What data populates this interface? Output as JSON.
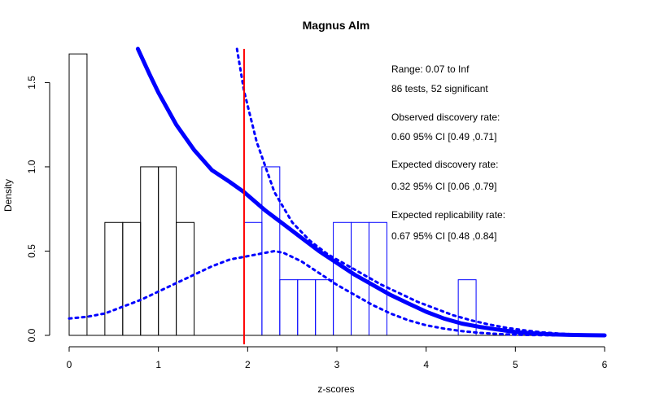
{
  "chart_data": {
    "type": "bar",
    "title": "Magnus Alm",
    "xlabel": "z-scores",
    "ylabel": "Density",
    "xlim": [
      0,
      6
    ],
    "ylim": [
      0,
      1.7
    ],
    "x_ticks": [
      "0",
      "1",
      "2",
      "3",
      "4",
      "5",
      "6"
    ],
    "y_ticks": [
      "0.0",
      "0.5",
      "1.0",
      "1.5"
    ],
    "histogram": {
      "bin_width": 0.2,
      "bins": [
        {
          "start": 0.0,
          "density": 1.67,
          "significant": false
        },
        {
          "start": 0.2,
          "density": 0.0,
          "significant": false
        },
        {
          "start": 0.4,
          "density": 0.67,
          "significant": false
        },
        {
          "start": 0.6,
          "density": 0.67,
          "significant": false
        },
        {
          "start": 0.8,
          "density": 1.0,
          "significant": false
        },
        {
          "start": 1.0,
          "density": 1.0,
          "significant": false
        },
        {
          "start": 1.2,
          "density": 0.67,
          "significant": false
        },
        {
          "start": 1.4,
          "density": 0.0,
          "significant": false
        },
        {
          "start": 1.6,
          "density": 0.0,
          "significant": false
        },
        {
          "start": 1.8,
          "density": 0.0,
          "significant": false
        },
        {
          "start": 1.96,
          "density": 0.67,
          "significant": true
        },
        {
          "start": 2.16,
          "density": 1.0,
          "significant": true
        },
        {
          "start": 2.36,
          "density": 0.33,
          "significant": true
        },
        {
          "start": 2.56,
          "density": 0.33,
          "significant": true
        },
        {
          "start": 2.76,
          "density": 0.33,
          "significant": true
        },
        {
          "start": 2.96,
          "density": 0.67,
          "significant": true
        },
        {
          "start": 3.16,
          "density": 0.67,
          "significant": true
        },
        {
          "start": 3.36,
          "density": 0.67,
          "significant": true
        },
        {
          "start": 3.56,
          "density": 0.0,
          "significant": true
        },
        {
          "start": 3.76,
          "density": 0.0,
          "significant": true
        },
        {
          "start": 3.96,
          "density": 0.0,
          "significant": true
        },
        {
          "start": 4.16,
          "density": 0.0,
          "significant": true
        },
        {
          "start": 4.36,
          "density": 0.33,
          "significant": true
        }
      ]
    },
    "significance_line": {
      "x": 1.96,
      "color": "#ff0000"
    },
    "series": [
      {
        "style": "solid",
        "color": "#0000ff",
        "points": [
          [
            0.77,
            1.7
          ],
          [
            0.9,
            1.55
          ],
          [
            1.0,
            1.44
          ],
          [
            1.2,
            1.25
          ],
          [
            1.4,
            1.1
          ],
          [
            1.6,
            0.98
          ],
          [
            1.8,
            0.91
          ],
          [
            1.96,
            0.85
          ],
          [
            2.2,
            0.74
          ],
          [
            2.4,
            0.66
          ],
          [
            2.6,
            0.58
          ],
          [
            2.8,
            0.5
          ],
          [
            3.0,
            0.43
          ],
          [
            3.2,
            0.36
          ],
          [
            3.4,
            0.3
          ],
          [
            3.6,
            0.24
          ],
          [
            3.8,
            0.19
          ],
          [
            4.0,
            0.14
          ],
          [
            4.2,
            0.1
          ],
          [
            4.4,
            0.07
          ],
          [
            4.6,
            0.05
          ],
          [
            4.8,
            0.035
          ],
          [
            5.0,
            0.02
          ],
          [
            5.2,
            0.012
          ],
          [
            5.4,
            0.006
          ],
          [
            5.6,
            0.003
          ],
          [
            5.8,
            0.001
          ],
          [
            6.0,
            0.0
          ]
        ]
      },
      {
        "style": "dotted",
        "color": "#0000ff",
        "points": [
          [
            0.0,
            0.1
          ],
          [
            0.2,
            0.11
          ],
          [
            0.4,
            0.13
          ],
          [
            0.6,
            0.17
          ],
          [
            0.8,
            0.21
          ],
          [
            1.0,
            0.26
          ],
          [
            1.2,
            0.31
          ],
          [
            1.4,
            0.36
          ],
          [
            1.6,
            0.41
          ],
          [
            1.8,
            0.45
          ],
          [
            2.0,
            0.47
          ],
          [
            2.2,
            0.49
          ],
          [
            2.3,
            0.5
          ],
          [
            2.4,
            0.49
          ],
          [
            2.6,
            0.44
          ],
          [
            2.8,
            0.37
          ],
          [
            3.0,
            0.3
          ],
          [
            3.2,
            0.24
          ],
          [
            3.4,
            0.18
          ],
          [
            3.6,
            0.13
          ],
          [
            3.8,
            0.09
          ],
          [
            4.0,
            0.06
          ],
          [
            4.2,
            0.04
          ],
          [
            4.4,
            0.025
          ],
          [
            4.6,
            0.015
          ],
          [
            4.8,
            0.008
          ],
          [
            5.0,
            0.004
          ],
          [
            5.2,
            0.002
          ],
          [
            5.5,
            0.0
          ],
          [
            6.0,
            0.0
          ]
        ]
      },
      {
        "style": "dotted",
        "color": "#0000ff",
        "points": [
          [
            1.88,
            1.7
          ],
          [
            1.96,
            1.45
          ],
          [
            2.1,
            1.15
          ],
          [
            2.3,
            0.85
          ],
          [
            2.5,
            0.67
          ],
          [
            2.7,
            0.56
          ],
          [
            2.9,
            0.48
          ],
          [
            3.1,
            0.42
          ],
          [
            3.3,
            0.36
          ],
          [
            3.5,
            0.3
          ],
          [
            3.7,
            0.25
          ],
          [
            3.9,
            0.2
          ],
          [
            4.1,
            0.16
          ],
          [
            4.3,
            0.12
          ],
          [
            4.5,
            0.09
          ],
          [
            4.7,
            0.065
          ],
          [
            4.9,
            0.045
          ],
          [
            5.1,
            0.03
          ],
          [
            5.3,
            0.018
          ],
          [
            5.5,
            0.01
          ],
          [
            5.7,
            0.005
          ],
          [
            6.0,
            0.0
          ]
        ]
      }
    ],
    "annotations": [
      "Range: 0.07 to Inf",
      "86 tests, 52 significant",
      "Observed discovery rate:",
      "0.60  95% CI [0.49 ,0.71]",
      "Expected discovery rate:",
      "0.32  95% CI [0.06 ,0.79]",
      "Expected replicability rate:",
      "0.67  95% CI [0.48 ,0.84]"
    ]
  }
}
